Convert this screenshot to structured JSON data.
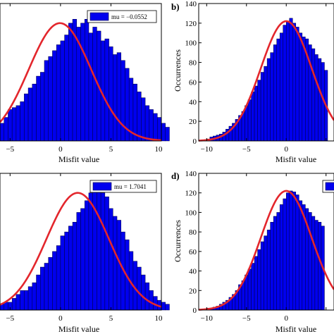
{
  "figure": {
    "panels": [
      {
        "label": "",
        "xlabel": "Misfit value",
        "ylabel": "",
        "legend": "mu = −0.0552"
      },
      {
        "label": "b)",
        "xlabel": "Misfit value",
        "ylabel": "Occurrences",
        "legend": ""
      },
      {
        "label": "",
        "xlabel": "Misfit value",
        "ylabel": "",
        "legend": "mu = 1.7041"
      },
      {
        "label": "d)",
        "xlabel": "Misfit value",
        "ylabel": "Occurrences",
        "legend": ""
      }
    ]
  },
  "colors": {
    "bar_fill": "#0000ee",
    "bar_edge": "#00003a",
    "fit_curve": "#e3262c",
    "axis": "#000000"
  },
  "chart_data": [
    {
      "type": "bar",
      "subtype": "histogram_with_normal_fit",
      "label": "",
      "xlabel": "Misfit value",
      "ylabel": "",
      "xlim": [
        -6,
        10
      ],
      "ylim": [
        0,
        70
      ],
      "xticks": [
        -5,
        0,
        5,
        10
      ],
      "xtick_labels": [
        "−5",
        "0",
        "5",
        "10"
      ],
      "yticks": [],
      "ytick_labels": [],
      "legend": {
        "text": "mu = −0.0552",
        "position": "top-right"
      },
      "bin_start": -6.0,
      "bin_width": 0.4,
      "values": [
        9,
        12,
        16,
        17,
        18,
        20,
        24,
        27,
        29,
        33,
        35,
        41,
        43,
        46,
        49,
        51,
        54,
        60,
        62,
        58,
        60,
        62,
        55,
        58,
        56,
        51,
        52,
        48,
        44,
        45,
        41,
        37,
        32,
        29,
        25,
        22,
        18,
        16,
        14,
        12,
        9,
        7
      ],
      "fit": {
        "mu": -0.0552,
        "sigma": 3.1,
        "peak": 60
      }
    },
    {
      "type": "bar",
      "subtype": "histogram_with_normal_fit",
      "label": "b)",
      "xlabel": "Misfit value",
      "ylabel": "Occurrences",
      "xlim": [
        -11,
        6
      ],
      "ylim": [
        0,
        140
      ],
      "xticks": [
        -10,
        -5,
        0,
        5
      ],
      "xtick_labels": [
        "−10",
        "−5",
        "0",
        ""
      ],
      "yticks": [
        0,
        20,
        40,
        60,
        80,
        100,
        120,
        140
      ],
      "ytick_labels": [
        "0",
        "20",
        "40",
        "60",
        "80",
        "100",
        "120",
        "140"
      ],
      "legend": null,
      "bin_start": -10.0,
      "bin_width": 0.4,
      "values": [
        2,
        4,
        5,
        6,
        7,
        9,
        12,
        15,
        18,
        22,
        26,
        30,
        36,
        42,
        50,
        56,
        62,
        70,
        76,
        84,
        90,
        98,
        104,
        110,
        118,
        122,
        125,
        120,
        116,
        110,
        106,
        104,
        98,
        94,
        88,
        84,
        80,
        72
      ],
      "fit": {
        "mu": 0.0,
        "sigma": 3.2,
        "peak": 122
      }
    },
    {
      "type": "bar",
      "subtype": "histogram_with_normal_fit",
      "label": "",
      "xlabel": "Misfit value",
      "ylabel": "",
      "xlim": [
        -6,
        10
      ],
      "ylim": [
        0,
        70
      ],
      "xticks": [
        -5,
        0,
        5,
        10
      ],
      "xtick_labels": [
        "−5",
        "0",
        "5",
        "10"
      ],
      "yticks": [],
      "ytick_labels": [],
      "legend": {
        "text": "mu = 1.7041",
        "position": "top-right"
      },
      "bin_start": -6.0,
      "bin_width": 0.4,
      "values": [
        3,
        4,
        4,
        6,
        8,
        10,
        10,
        12,
        14,
        18,
        22,
        24,
        27,
        30,
        33,
        38,
        40,
        43,
        45,
        50,
        52,
        56,
        60,
        62,
        64,
        60,
        58,
        52,
        48,
        46,
        40,
        36,
        30,
        25,
        22,
        18,
        14,
        10,
        7,
        5,
        4,
        3
      ],
      "fit": {
        "mu": 1.7041,
        "sigma": 3.1,
        "peak": 60
      }
    },
    {
      "type": "bar",
      "subtype": "histogram_with_normal_fit",
      "label": "d)",
      "xlabel": "Misfit value",
      "ylabel": "Occurrences",
      "xlim": [
        -11,
        6
      ],
      "ylim": [
        0,
        140
      ],
      "xticks": [
        -10,
        -5,
        0,
        5
      ],
      "xtick_labels": [
        "−10",
        "−5",
        "0",
        ""
      ],
      "yticks": [
        0,
        20,
        40,
        60,
        80,
        100,
        120,
        140
      ],
      "ytick_labels": [
        "0",
        "20",
        "40",
        "60",
        "80",
        "100",
        "120",
        "140"
      ],
      "legend": {
        "text": "",
        "position": "top-right"
      },
      "bin_start": -10.0,
      "bin_width": 0.4,
      "values": [
        2,
        2,
        3,
        4,
        6,
        8,
        10,
        13,
        16,
        20,
        26,
        30,
        36,
        42,
        48,
        55,
        62,
        70,
        76,
        82,
        90,
        96,
        100,
        108,
        114,
        120,
        122,
        121,
        118,
        112,
        108,
        104,
        100,
        96,
        92,
        90,
        86
      ],
      "fit": {
        "mu": 0.0,
        "sigma": 3.2,
        "peak": 122
      }
    }
  ]
}
